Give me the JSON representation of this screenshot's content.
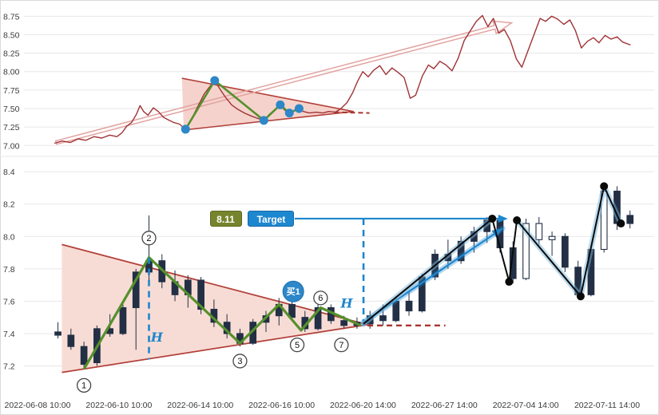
{
  "chart_data": [
    {
      "type": "line",
      "name": "overview-price-line",
      "ylim": [
        6.96,
        8.84
      ],
      "ytick_labels": [
        "8.75",
        "8.50",
        "8.25",
        "8.00",
        "7.75",
        "7.50",
        "7.25",
        "7.00"
      ],
      "line_color": "#a03336",
      "points": [
        [
          3.7,
          7.03
        ],
        [
          5,
          7.06
        ],
        [
          6.3,
          7.04
        ],
        [
          7.6,
          7.09
        ],
        [
          8.9,
          7.07
        ],
        [
          10.2,
          7.12
        ],
        [
          11.5,
          7.1
        ],
        [
          12.8,
          7.14
        ],
        [
          14,
          7.12
        ],
        [
          14.8,
          7.17
        ],
        [
          15.6,
          7.26
        ],
        [
          16.4,
          7.31
        ],
        [
          17.2,
          7.42
        ],
        [
          17.8,
          7.54
        ],
        [
          18.4,
          7.46
        ],
        [
          19.1,
          7.41
        ],
        [
          20,
          7.51
        ],
        [
          20.8,
          7.46
        ],
        [
          21.7,
          7.38
        ],
        [
          22.6,
          7.34
        ],
        [
          23.4,
          7.31
        ],
        [
          24.3,
          7.29
        ],
        [
          25.3,
          7.22
        ],
        [
          26.3,
          7.36
        ],
        [
          27.4,
          7.54
        ],
        [
          28.4,
          7.7
        ],
        [
          29.5,
          7.82
        ],
        [
          30.1,
          7.88
        ],
        [
          31,
          7.76
        ],
        [
          31.9,
          7.65
        ],
        [
          32.9,
          7.55
        ],
        [
          33.9,
          7.49
        ],
        [
          35,
          7.44
        ],
        [
          36.1,
          7.4
        ],
        [
          37.1,
          7.37
        ],
        [
          38.2,
          7.34
        ],
        [
          39.2,
          7.43
        ],
        [
          40.3,
          7.5
        ],
        [
          40.9,
          7.55
        ],
        [
          41.6,
          7.48
        ],
        [
          42.4,
          7.44
        ],
        [
          43.2,
          7.47
        ],
        [
          43.9,
          7.51
        ],
        [
          44.7,
          7.46
        ],
        [
          45.7,
          7.44
        ],
        [
          46.8,
          7.45
        ],
        [
          47.9,
          7.44
        ],
        [
          48.9,
          7.46
        ],
        [
          50,
          7.45
        ],
        [
          50.9,
          7.5
        ],
        [
          51.9,
          7.58
        ],
        [
          52.8,
          7.71
        ],
        [
          53.7,
          7.88
        ],
        [
          54.5,
          8
        ],
        [
          55.4,
          7.93
        ],
        [
          56.3,
          8.02
        ],
        [
          57.3,
          8.08
        ],
        [
          58.3,
          7.96
        ],
        [
          59.3,
          8.05
        ],
        [
          60.3,
          7.99
        ],
        [
          61.3,
          7.92
        ],
        [
          62.3,
          7.64
        ],
        [
          63.2,
          7.68
        ],
        [
          64.3,
          7.94
        ],
        [
          65.3,
          8.09
        ],
        [
          66.2,
          8.04
        ],
        [
          67.2,
          8.14
        ],
        [
          68.2,
          8.09
        ],
        [
          69.2,
          8.01
        ],
        [
          70.2,
          8.18
        ],
        [
          71.2,
          8.42
        ],
        [
          72.2,
          8.55
        ],
        [
          73.2,
          8.68
        ],
        [
          74.2,
          8.76
        ],
        [
          75.1,
          8.61
        ],
        [
          76,
          8.72
        ],
        [
          76.9,
          8.52
        ],
        [
          77.8,
          8.57
        ],
        [
          78.8,
          8.42
        ],
        [
          79.8,
          8.17
        ],
        [
          80.7,
          8.06
        ],
        [
          81.7,
          8.28
        ],
        [
          82.7,
          8.5
        ],
        [
          83.7,
          8.72
        ],
        [
          84.6,
          8.68
        ],
        [
          85.6,
          8.75
        ],
        [
          86.6,
          8.71
        ],
        [
          87.6,
          8.64
        ],
        [
          88.6,
          8.7
        ],
        [
          89.5,
          8.56
        ],
        [
          90.5,
          8.32
        ],
        [
          91.5,
          8.41
        ],
        [
          92.5,
          8.46
        ],
        [
          93.4,
          8.39
        ],
        [
          94.4,
          8.49
        ],
        [
          95.4,
          8.44
        ],
        [
          96.4,
          8.47
        ],
        [
          97.3,
          8.4
        ],
        [
          98.6,
          8.36
        ]
      ],
      "overlays": {
        "triangle": {
          "fill": "#f5d3cc",
          "edge": "#b2403a",
          "upper": [
            [
              24.7,
              7.91
            ],
            [
              53,
              7.46
            ]
          ],
          "lower": [
            [
              25,
              7.21
            ],
            [
              53,
              7.46
            ]
          ]
        },
        "apex_dashed_line": {
          "color": "#a8342e",
          "from": [
            49.8,
            7.45
          ],
          "to": [
            55.6,
            7.44
          ]
        },
        "zigzag": {
          "color": "#55902c",
          "points": [
            [
              25.3,
              7.22
            ],
            [
              30.1,
              7.88
            ],
            [
              38.2,
              7.34
            ],
            [
              40.9,
              7.55
            ],
            [
              42.4,
              7.44
            ],
            [
              44,
              7.5
            ]
          ]
        },
        "pivot_dots": {
          "color": "#2d87c8",
          "radius": 5.5
        },
        "trend_arrow": {
          "color": "#e2a3a0",
          "from": [
            4,
            7.04
          ],
          "to": [
            79,
            8.66
          ]
        }
      }
    },
    {
      "type": "candlestick",
      "name": "intraday-candles",
      "ylim": [
        7.03,
        8.45
      ],
      "ytick_labels": [
        "8.4",
        "8.2",
        "8.0",
        "7.8",
        "7.6",
        "7.4",
        "7.2"
      ],
      "xtick_labels": [
        "2022-06-08 10:00",
        "2022-06-10 10:00",
        "2022-06-14 10:00",
        "2022-06-16 10:00",
        "2022-06-20 14:00",
        "2022-06-27 14:00",
        "2022-07-04 14:00",
        "2022-07-11 14:00"
      ],
      "candle_color": "#222f44",
      "hollow_indices": [
        36,
        37,
        38,
        42
      ],
      "candles": [
        [
          7.41,
          7.47,
          7.37,
          7.39
        ],
        [
          7.39,
          7.43,
          7.3,
          7.32
        ],
        [
          7.32,
          7.35,
          7.18,
          7.21
        ],
        [
          7.22,
          7.45,
          7.2,
          7.43
        ],
        [
          7.43,
          7.52,
          7.38,
          7.4
        ],
        [
          7.4,
          7.58,
          7.39,
          7.56
        ],
        [
          7.56,
          7.8,
          7.3,
          7.78
        ],
        [
          7.78,
          8.13,
          7.72,
          7.85
        ],
        [
          7.85,
          7.89,
          7.68,
          7.72
        ],
        [
          7.72,
          7.79,
          7.6,
          7.64
        ],
        [
          7.64,
          7.76,
          7.56,
          7.73
        ],
        [
          7.73,
          7.75,
          7.52,
          7.55
        ],
        [
          7.55,
          7.61,
          7.44,
          7.47
        ],
        [
          7.47,
          7.52,
          7.37,
          7.4
        ],
        [
          7.4,
          7.43,
          7.32,
          7.34
        ],
        [
          7.34,
          7.49,
          7.33,
          7.47
        ],
        [
          7.47,
          7.54,
          7.41,
          7.51
        ],
        [
          7.51,
          7.62,
          7.45,
          7.58
        ],
        [
          7.58,
          7.62,
          7.48,
          7.5
        ],
        [
          7.5,
          7.54,
          7.41,
          7.43
        ],
        [
          7.43,
          7.58,
          7.42,
          7.56
        ],
        [
          7.56,
          7.58,
          7.46,
          7.48
        ],
        [
          7.48,
          7.51,
          7.43,
          7.45
        ],
        [
          7.45,
          7.5,
          7.43,
          7.47
        ],
        [
          7.46,
          7.54,
          7.43,
          7.51
        ],
        [
          7.51,
          7.58,
          7.45,
          7.48
        ],
        [
          7.48,
          7.63,
          7.47,
          7.6
        ],
        [
          7.6,
          7.66,
          7.51,
          7.54
        ],
        [
          7.54,
          7.77,
          7.53,
          7.75
        ],
        [
          7.75,
          7.92,
          7.73,
          7.89
        ],
        [
          7.89,
          7.98,
          7.8,
          7.85
        ],
        [
          7.85,
          8.0,
          7.83,
          7.97
        ],
        [
          7.97,
          8.06,
          7.9,
          8.03
        ],
        [
          8.03,
          8.12,
          7.96,
          8.1
        ],
        [
          8.1,
          8.13,
          7.9,
          7.93
        ],
        [
          7.93,
          7.97,
          7.71,
          7.74
        ],
        [
          7.74,
          8.11,
          7.73,
          8.08
        ],
        [
          8.08,
          8.12,
          7.95,
          7.98
        ],
        [
          7.98,
          8.03,
          7.88,
          8.0
        ],
        [
          8.0,
          8.02,
          7.78,
          7.81
        ],
        [
          7.81,
          7.85,
          7.62,
          7.64
        ],
        [
          7.64,
          7.95,
          7.63,
          7.92
        ],
        [
          7.92,
          8.32,
          7.9,
          8.28
        ],
        [
          8.28,
          8.31,
          8.04,
          8.08
        ],
        [
          8.08,
          8.16,
          8.05,
          8.13
        ]
      ],
      "overlays": {
        "triangle": {
          "fill": "#f7dcd5",
          "edge": "#b2403a",
          "upper": [
            [
              0.3,
              7.95
            ],
            [
              23.8,
              7.455
            ]
          ],
          "lower": [
            [
              0.3,
              7.16
            ],
            [
              23.8,
              7.455
            ]
          ]
        },
        "apex_dashed_line": {
          "color": "#a8342e",
          "from": [
            23.8,
            7.45
          ],
          "to": [
            29.8,
            7.45
          ]
        },
        "zigzag": {
          "color": "#55902c",
          "points": [
            [
              2,
              7.18
            ],
            [
              7,
              7.87
            ],
            [
              14,
              7.34
            ],
            [
              17,
              7.58
            ],
            [
              18.7,
              7.42
            ],
            [
              20.2,
              7.56
            ],
            [
              23.3,
              7.45
            ]
          ]
        },
        "pivot_labels": [
          {
            "n": "1",
            "at": [
              2,
              7.08
            ]
          },
          {
            "n": "2",
            "at": [
              7,
              7.99
            ]
          },
          {
            "n": "3",
            "at": [
              14,
              7.23
            ]
          },
          {
            "n": "5",
            "at": [
              18.4,
              7.33
            ]
          },
          {
            "n": "6",
            "at": [
              20.2,
              7.62
            ]
          },
          {
            "n": "7",
            "at": [
              21.8,
              7.33
            ]
          }
        ],
        "buy_badge": {
          "label": "买1",
          "at": [
            18.1,
            7.66
          ],
          "color": "#2d87c8",
          "edge": "#1a6fae"
        },
        "height_lines": [
          {
            "at_ix": 7,
            "from": 7.87,
            "to": 7.24,
            "label": "H",
            "label_at": [
              7.6,
              7.35
            ],
            "color": "#1e86cc"
          },
          {
            "at_ix": 23.5,
            "from": 8.11,
            "to": 7.44,
            "label": "H",
            "label_at": [
              22.2,
              7.56
            ],
            "color": "#1e86cc"
          }
        ],
        "target": {
          "price_label": "8.11",
          "target_label": "Target",
          "level": 8.11,
          "price_box_at": 12.9,
          "target_box_at": 16.4,
          "line_from": 18.2,
          "line_to": 34.6,
          "price_box_color": "#76842e",
          "price_box_edge": "#5c6a20",
          "target_box_color": "#1d87cf",
          "target_box_edge": "#1568a5"
        },
        "breakout_arrow": {
          "from": [
            23.5,
            7.47
          ],
          "to": [
            34.2,
            8.05
          ],
          "color": "#1d87cf"
        },
        "path_after": {
          "color": "#0a0a0a",
          "glow": "#7db9e0",
          "points": [
            [
              23.5,
              7.46
            ],
            [
              33.4,
              8.11
            ],
            [
              34.7,
              7.72
            ],
            [
              35.3,
              8.1
            ],
            [
              40.2,
              7.63
            ],
            [
              42,
              8.31
            ],
            [
              43.3,
              8.08
            ]
          ],
          "dot_indices": [
            1,
            2,
            3,
            4,
            5,
            6
          ]
        }
      }
    }
  ]
}
